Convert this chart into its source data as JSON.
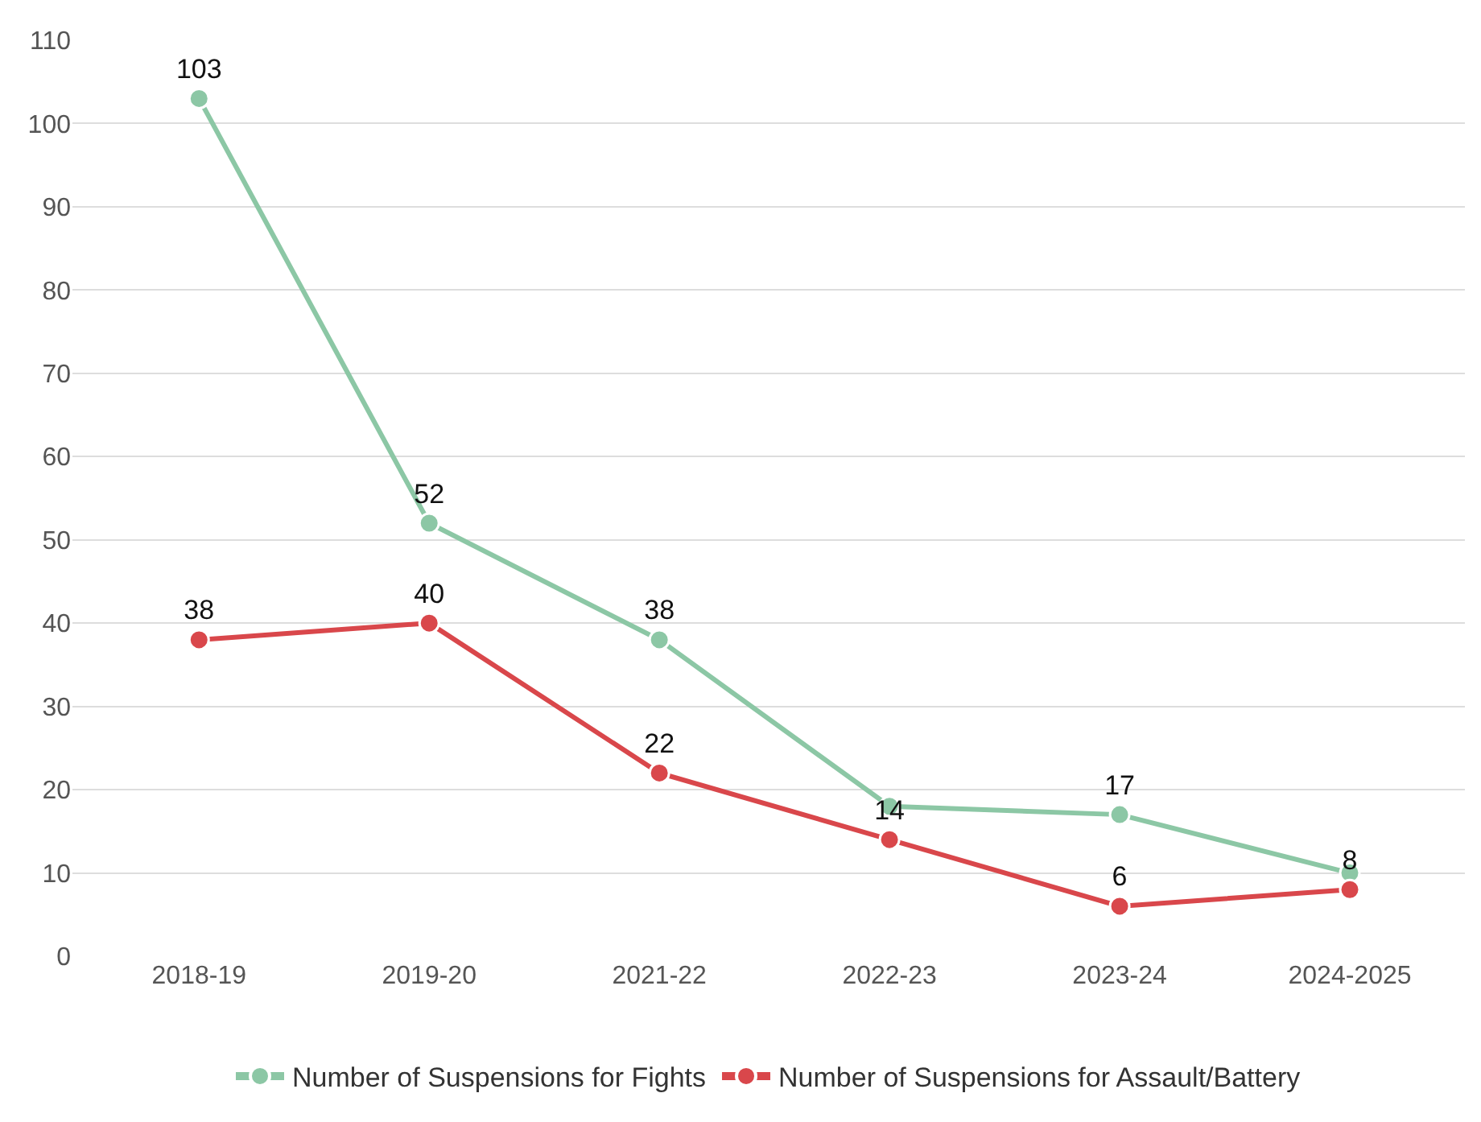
{
  "chart_data": {
    "type": "line",
    "categories": [
      "2018-19",
      "2019-20",
      "2021-22",
      "2022-23",
      "2023-24",
      "2024-2025"
    ],
    "series": [
      {
        "name": "Number of Suspensions for Fights",
        "color": "#8cc7a5",
        "values": [
          103,
          52,
          38,
          18,
          17,
          10
        ],
        "value_labels": [
          "103",
          "52",
          "38",
          null,
          "17",
          null
        ]
      },
      {
        "name": "Number of Suspensions for Assault/Battery",
        "color": "#d9474b",
        "values": [
          38,
          40,
          22,
          14,
          6,
          8
        ],
        "value_labels": [
          "38",
          "40",
          "22",
          "14",
          "6",
          "8"
        ]
      }
    ],
    "ylim": [
      0,
      110
    ],
    "yticks": [
      0,
      10,
      20,
      30,
      40,
      50,
      60,
      70,
      80,
      90,
      100,
      110
    ],
    "grid": "y",
    "legend": "bottom",
    "marker": "circle",
    "line_style": "solid"
  }
}
